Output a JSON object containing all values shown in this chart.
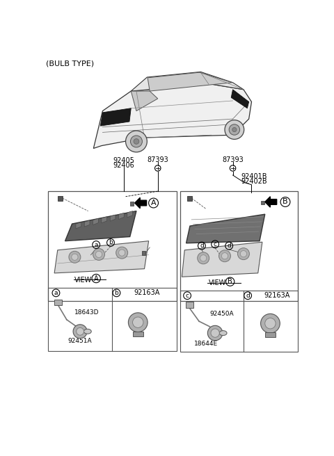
{
  "title": "(BULB TYPE)",
  "bg_color": "#ffffff",
  "top_left_part1": "92405",
  "top_left_part2": "92406",
  "top_center_bolt": "87393",
  "top_right_bolt": "87393",
  "top_right_part1": "92401B",
  "top_right_part2": "92402B",
  "box_a_right_partno": "92163A",
  "box_a_left_partno1": "18643D",
  "box_a_left_partno2": "92451A",
  "box_b_right_partno": "92163A",
  "box_b_left_partno1": "92450A",
  "box_b_left_partno2": "18644E",
  "colors": {
    "black": "#000000",
    "box_border": "#444444",
    "text": "#111111",
    "lamp_dark": "#555555",
    "lamp_mid": "#888888",
    "lamp_light": "#bbbbbb",
    "bg": "#ffffff",
    "gray_line": "#666666"
  }
}
